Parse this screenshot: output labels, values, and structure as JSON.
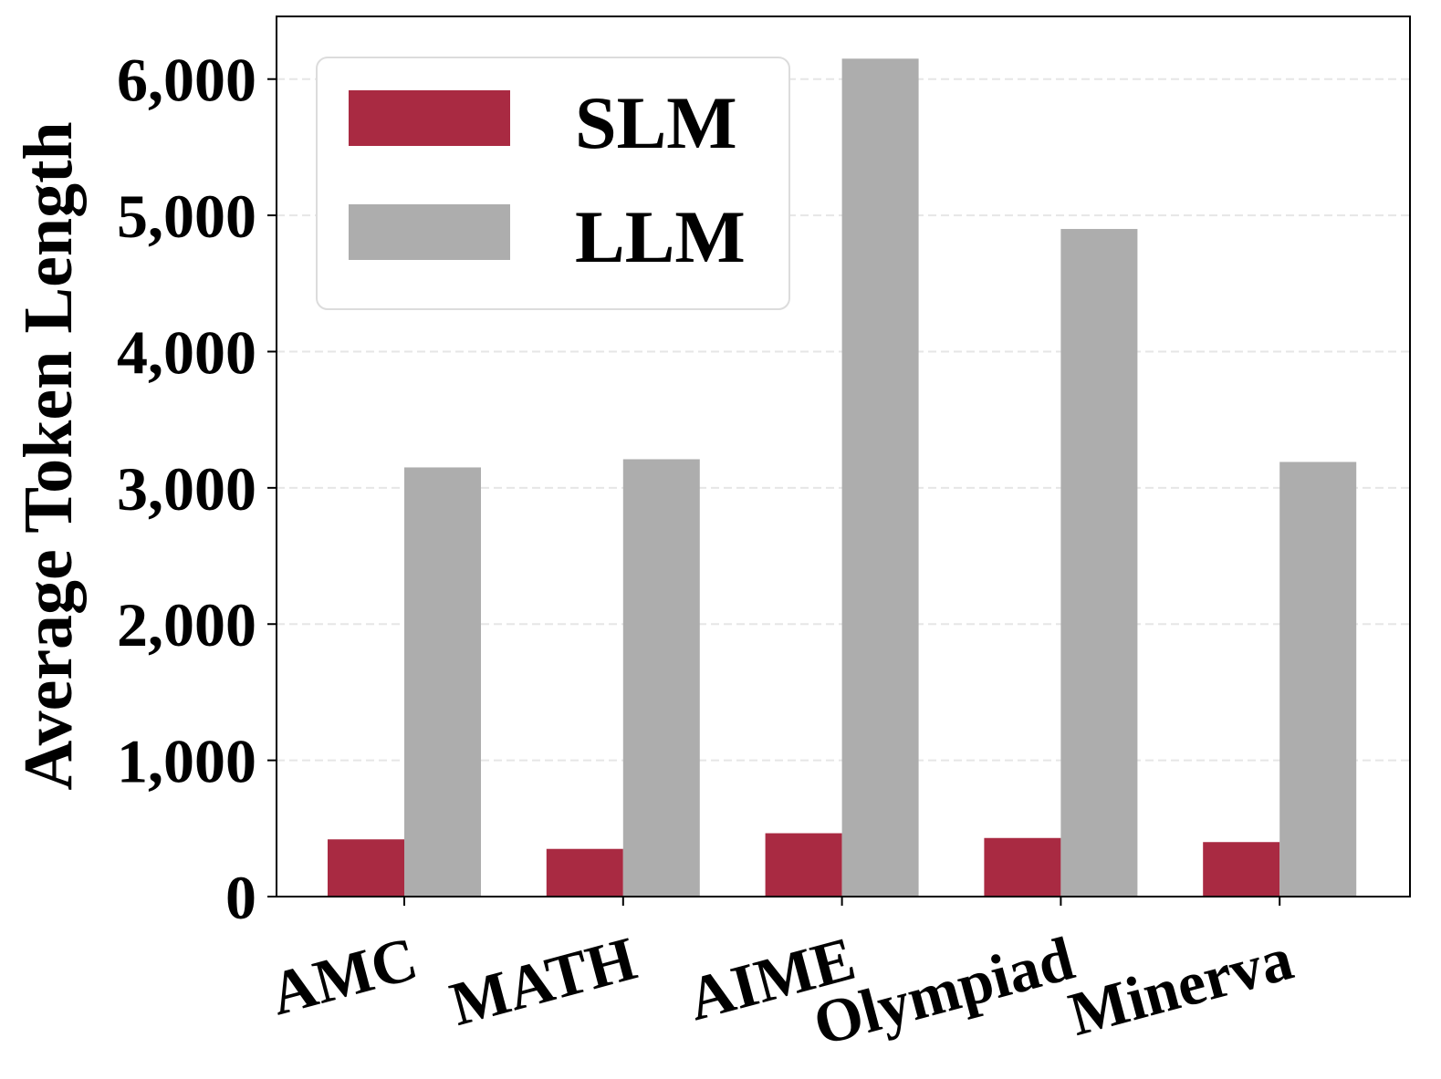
{
  "chart_data": {
    "type": "bar",
    "categories": [
      "AMC",
      "MATH",
      "AIME",
      "Olympiad",
      "Minerva"
    ],
    "series": [
      {
        "name": "SLM",
        "values": [
          420,
          350,
          465,
          430,
          400
        ],
        "color": "#a92a42"
      },
      {
        "name": "LLM",
        "values": [
          3150,
          3210,
          6150,
          4900,
          3190
        ],
        "color": "#adadad"
      }
    ],
    "ylabel": "Average Token Length",
    "xlabel": "",
    "ylim": [
      0,
      6460
    ],
    "yticks": [
      0,
      1000,
      2000,
      3000,
      4000,
      5000,
      6000
    ],
    "ytick_labels": [
      "0",
      "1,000",
      "2,000",
      "3,000",
      "4,000",
      "5,000",
      "6,000"
    ],
    "grid": "y-dashed",
    "legend": "top-left"
  }
}
